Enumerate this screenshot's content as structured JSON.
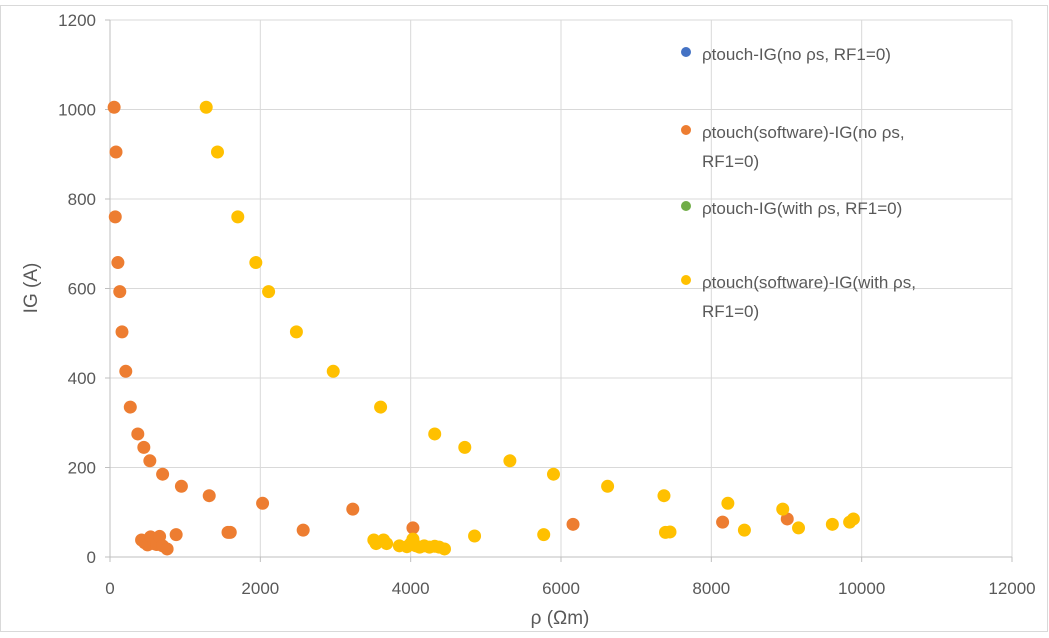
{
  "chart_data": {
    "type": "scatter",
    "title": "",
    "xlabel": "ρ (Ωm)",
    "ylabel": "IG (A)",
    "xlim": [
      0,
      12000
    ],
    "ylim": [
      0,
      1200
    ],
    "xticks": [
      0,
      2000,
      4000,
      6000,
      8000,
      10000,
      12000
    ],
    "yticks": [
      0,
      200,
      400,
      600,
      800,
      1000,
      1200
    ],
    "grid": true,
    "legend_position": "right",
    "series": [
      {
        "name": "ρtouch-IG(no ρs, RF1=0)",
        "color": "#4472C4",
        "points": []
      },
      {
        "name": "ρtouch(software)-IG(no ρs, RF1=0)",
        "color": "#ED7D31",
        "points": [
          [
            55,
            1005
          ],
          [
            80,
            905
          ],
          [
            70,
            760
          ],
          [
            105,
            658
          ],
          [
            130,
            593
          ],
          [
            160,
            503
          ],
          [
            210,
            415
          ],
          [
            270,
            335
          ],
          [
            370,
            275
          ],
          [
            450,
            245
          ],
          [
            530,
            215
          ],
          [
            700,
            185
          ],
          [
            950,
            158
          ],
          [
            1320,
            137
          ],
          [
            2030,
            120
          ],
          [
            3230,
            107
          ],
          [
            4030,
            65
          ],
          [
            6160,
            73
          ],
          [
            8150,
            78
          ],
          [
            9010,
            85
          ],
          [
            2570,
            60
          ],
          [
            1570,
            55
          ],
          [
            1600,
            55
          ],
          [
            880,
            50
          ],
          [
            420,
            38
          ],
          [
            460,
            32
          ],
          [
            500,
            27
          ],
          [
            540,
            45
          ],
          [
            580,
            30
          ],
          [
            620,
            28
          ],
          [
            660,
            46
          ],
          [
            700,
            25
          ],
          [
            760,
            18
          ]
        ]
      },
      {
        "name": "ρtouch-IG(with ρs, RF1=0)",
        "color": "#70AD47",
        "points": []
      },
      {
        "name": "ρtouch(software)-IG(with ρs, RF1=0)",
        "color": "#FFC000",
        "points": [
          [
            1280,
            1005
          ],
          [
            1430,
            905
          ],
          [
            1700,
            760
          ],
          [
            1940,
            658
          ],
          [
            2110,
            593
          ],
          [
            2480,
            503
          ],
          [
            2970,
            415
          ],
          [
            3600,
            335
          ],
          [
            4320,
            275
          ],
          [
            4720,
            245
          ],
          [
            5320,
            215
          ],
          [
            5900,
            185
          ],
          [
            6620,
            158
          ],
          [
            7370,
            137
          ],
          [
            8220,
            120
          ],
          [
            8950,
            107
          ],
          [
            9890,
            85
          ],
          [
            9840,
            78
          ],
          [
            9610,
            73
          ],
          [
            9160,
            65
          ],
          [
            8440,
            60
          ],
          [
            7450,
            56
          ],
          [
            7390,
            55
          ],
          [
            5770,
            50
          ],
          [
            4850,
            47
          ],
          [
            3510,
            38
          ],
          [
            3540,
            30
          ],
          [
            3640,
            38
          ],
          [
            3680,
            30
          ],
          [
            3850,
            25
          ],
          [
            3950,
            23
          ],
          [
            4000,
            30
          ],
          [
            4030,
            40
          ],
          [
            4070,
            25
          ],
          [
            4120,
            22
          ],
          [
            4180,
            25
          ],
          [
            4250,
            22
          ],
          [
            4320,
            24
          ],
          [
            4380,
            22
          ],
          [
            4450,
            18
          ]
        ]
      }
    ]
  }
}
